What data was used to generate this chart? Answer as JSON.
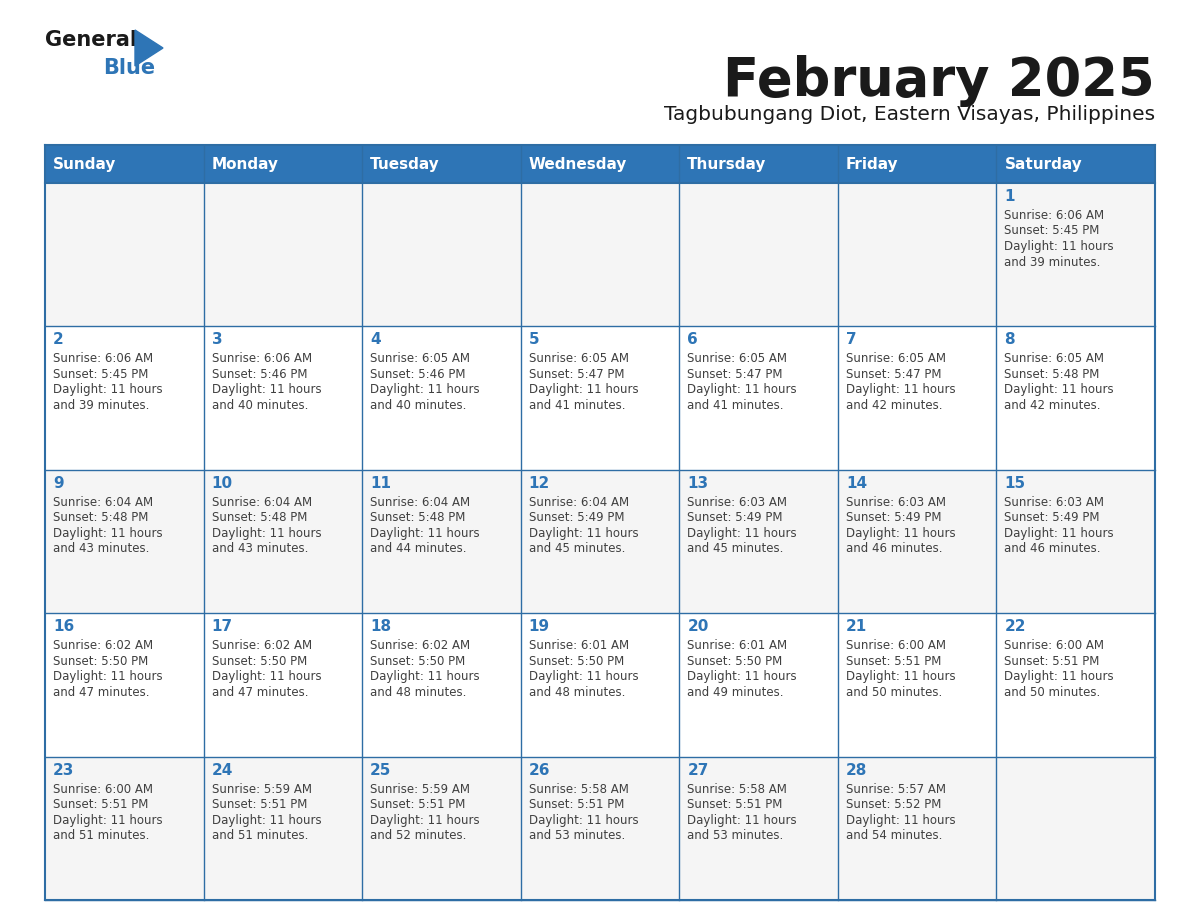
{
  "title": "February 2025",
  "subtitle": "Tagbubungang Diot, Eastern Visayas, Philippines",
  "days_of_week": [
    "Sunday",
    "Monday",
    "Tuesday",
    "Wednesday",
    "Thursday",
    "Friday",
    "Saturday"
  ],
  "header_color": "#2e75b6",
  "header_text_color": "#ffffff",
  "cell_bg_even": "#f5f5f5",
  "cell_bg_odd": "#ffffff",
  "border_color": "#2e6da4",
  "day_number_color": "#2e75b6",
  "text_color": "#404040",
  "logo_general_color": "#1a1a1a",
  "logo_blue_color": "#2e75b6",
  "title_color": "#1a1a1a",
  "subtitle_color": "#1a1a1a",
  "calendar_data": [
    {
      "day": 1,
      "col": 6,
      "row": 0,
      "sunrise": "6:06 AM",
      "sunset": "5:45 PM",
      "daylight_line1": "Daylight: 11 hours",
      "daylight_line2": "and 39 minutes."
    },
    {
      "day": 2,
      "col": 0,
      "row": 1,
      "sunrise": "6:06 AM",
      "sunset": "5:45 PM",
      "daylight_line1": "Daylight: 11 hours",
      "daylight_line2": "and 39 minutes."
    },
    {
      "day": 3,
      "col": 1,
      "row": 1,
      "sunrise": "6:06 AM",
      "sunset": "5:46 PM",
      "daylight_line1": "Daylight: 11 hours",
      "daylight_line2": "and 40 minutes."
    },
    {
      "day": 4,
      "col": 2,
      "row": 1,
      "sunrise": "6:05 AM",
      "sunset": "5:46 PM",
      "daylight_line1": "Daylight: 11 hours",
      "daylight_line2": "and 40 minutes."
    },
    {
      "day": 5,
      "col": 3,
      "row": 1,
      "sunrise": "6:05 AM",
      "sunset": "5:47 PM",
      "daylight_line1": "Daylight: 11 hours",
      "daylight_line2": "and 41 minutes."
    },
    {
      "day": 6,
      "col": 4,
      "row": 1,
      "sunrise": "6:05 AM",
      "sunset": "5:47 PM",
      "daylight_line1": "Daylight: 11 hours",
      "daylight_line2": "and 41 minutes."
    },
    {
      "day": 7,
      "col": 5,
      "row": 1,
      "sunrise": "6:05 AM",
      "sunset": "5:47 PM",
      "daylight_line1": "Daylight: 11 hours",
      "daylight_line2": "and 42 minutes."
    },
    {
      "day": 8,
      "col": 6,
      "row": 1,
      "sunrise": "6:05 AM",
      "sunset": "5:48 PM",
      "daylight_line1": "Daylight: 11 hours",
      "daylight_line2": "and 42 minutes."
    },
    {
      "day": 9,
      "col": 0,
      "row": 2,
      "sunrise": "6:04 AM",
      "sunset": "5:48 PM",
      "daylight_line1": "Daylight: 11 hours",
      "daylight_line2": "and 43 minutes."
    },
    {
      "day": 10,
      "col": 1,
      "row": 2,
      "sunrise": "6:04 AM",
      "sunset": "5:48 PM",
      "daylight_line1": "Daylight: 11 hours",
      "daylight_line2": "and 43 minutes."
    },
    {
      "day": 11,
      "col": 2,
      "row": 2,
      "sunrise": "6:04 AM",
      "sunset": "5:48 PM",
      "daylight_line1": "Daylight: 11 hours",
      "daylight_line2": "and 44 minutes."
    },
    {
      "day": 12,
      "col": 3,
      "row": 2,
      "sunrise": "6:04 AM",
      "sunset": "5:49 PM",
      "daylight_line1": "Daylight: 11 hours",
      "daylight_line2": "and 45 minutes."
    },
    {
      "day": 13,
      "col": 4,
      "row": 2,
      "sunrise": "6:03 AM",
      "sunset": "5:49 PM",
      "daylight_line1": "Daylight: 11 hours",
      "daylight_line2": "and 45 minutes."
    },
    {
      "day": 14,
      "col": 5,
      "row": 2,
      "sunrise": "6:03 AM",
      "sunset": "5:49 PM",
      "daylight_line1": "Daylight: 11 hours",
      "daylight_line2": "and 46 minutes."
    },
    {
      "day": 15,
      "col": 6,
      "row": 2,
      "sunrise": "6:03 AM",
      "sunset": "5:49 PM",
      "daylight_line1": "Daylight: 11 hours",
      "daylight_line2": "and 46 minutes."
    },
    {
      "day": 16,
      "col": 0,
      "row": 3,
      "sunrise": "6:02 AM",
      "sunset": "5:50 PM",
      "daylight_line1": "Daylight: 11 hours",
      "daylight_line2": "and 47 minutes."
    },
    {
      "day": 17,
      "col": 1,
      "row": 3,
      "sunrise": "6:02 AM",
      "sunset": "5:50 PM",
      "daylight_line1": "Daylight: 11 hours",
      "daylight_line2": "and 47 minutes."
    },
    {
      "day": 18,
      "col": 2,
      "row": 3,
      "sunrise": "6:02 AM",
      "sunset": "5:50 PM",
      "daylight_line1": "Daylight: 11 hours",
      "daylight_line2": "and 48 minutes."
    },
    {
      "day": 19,
      "col": 3,
      "row": 3,
      "sunrise": "6:01 AM",
      "sunset": "5:50 PM",
      "daylight_line1": "Daylight: 11 hours",
      "daylight_line2": "and 48 minutes."
    },
    {
      "day": 20,
      "col": 4,
      "row": 3,
      "sunrise": "6:01 AM",
      "sunset": "5:50 PM",
      "daylight_line1": "Daylight: 11 hours",
      "daylight_line2": "and 49 minutes."
    },
    {
      "day": 21,
      "col": 5,
      "row": 3,
      "sunrise": "6:00 AM",
      "sunset": "5:51 PM",
      "daylight_line1": "Daylight: 11 hours",
      "daylight_line2": "and 50 minutes."
    },
    {
      "day": 22,
      "col": 6,
      "row": 3,
      "sunrise": "6:00 AM",
      "sunset": "5:51 PM",
      "daylight_line1": "Daylight: 11 hours",
      "daylight_line2": "and 50 minutes."
    },
    {
      "day": 23,
      "col": 0,
      "row": 4,
      "sunrise": "6:00 AM",
      "sunset": "5:51 PM",
      "daylight_line1": "Daylight: 11 hours",
      "daylight_line2": "and 51 minutes."
    },
    {
      "day": 24,
      "col": 1,
      "row": 4,
      "sunrise": "5:59 AM",
      "sunset": "5:51 PM",
      "daylight_line1": "Daylight: 11 hours",
      "daylight_line2": "and 51 minutes."
    },
    {
      "day": 25,
      "col": 2,
      "row": 4,
      "sunrise": "5:59 AM",
      "sunset": "5:51 PM",
      "daylight_line1": "Daylight: 11 hours",
      "daylight_line2": "and 52 minutes."
    },
    {
      "day": 26,
      "col": 3,
      "row": 4,
      "sunrise": "5:58 AM",
      "sunset": "5:51 PM",
      "daylight_line1": "Daylight: 11 hours",
      "daylight_line2": "and 53 minutes."
    },
    {
      "day": 27,
      "col": 4,
      "row": 4,
      "sunrise": "5:58 AM",
      "sunset": "5:51 PM",
      "daylight_line1": "Daylight: 11 hours",
      "daylight_line2": "and 53 minutes."
    },
    {
      "day": 28,
      "col": 5,
      "row": 4,
      "sunrise": "5:57 AM",
      "sunset": "5:52 PM",
      "daylight_line1": "Daylight: 11 hours",
      "daylight_line2": "and 54 minutes."
    }
  ]
}
